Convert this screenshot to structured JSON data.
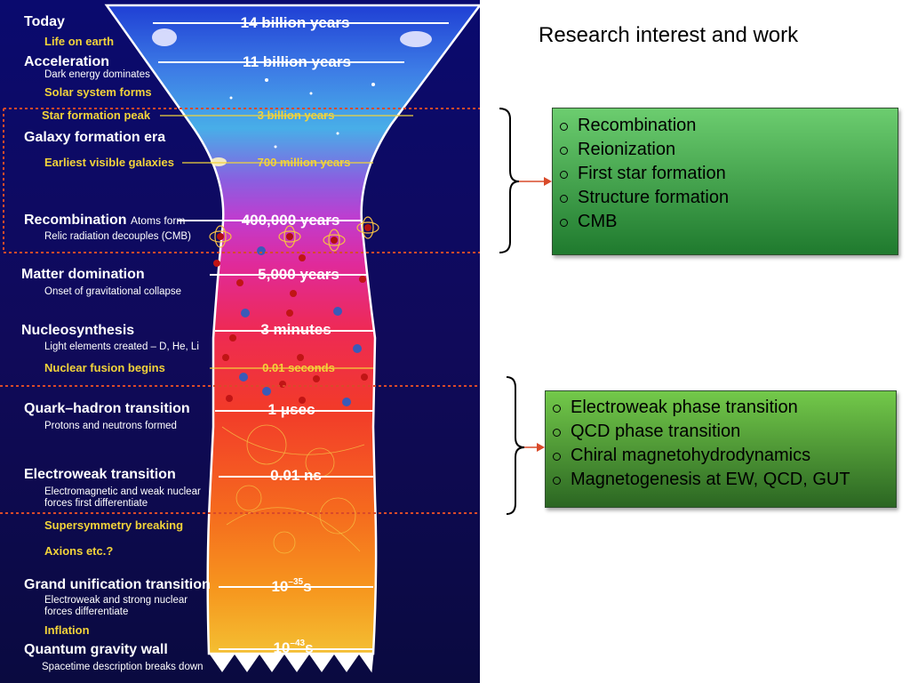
{
  "right_panel": {
    "title": "Research interest and work",
    "group1": [
      "Recombination",
      "Reionization",
      "First star formation",
      "Structure formation",
      "CMB"
    ],
    "group2": [
      "Electroweak phase transition",
      "QCD phase transition",
      "Chiral magnetohydrodynamics",
      "Magnetogenesis at EW, QCD, GUT"
    ]
  },
  "timeline": {
    "events": [
      {
        "title": "Today"
      },
      {
        "yellow": "Life on earth"
      },
      {
        "title": "Acceleration",
        "sub": "Dark energy dominates"
      },
      {
        "yellow": "Solar system forms"
      },
      {
        "yellow": "Star formation peak"
      },
      {
        "title": "Galaxy formation era"
      },
      {
        "yellow": "Earliest visible galaxies"
      },
      {
        "title": "Recombination",
        "inline": "Atoms form",
        "sub": "Relic radiation decouples (CMB)"
      },
      {
        "title": "Matter domination",
        "sub": "Onset of gravitational collapse"
      },
      {
        "title": "Nucleosynthesis",
        "sub": "Light elements created – D, He, Li"
      },
      {
        "yellow": "Nuclear fusion begins"
      },
      {
        "title": "Quark–hadron transition",
        "sub": "Protons and neutrons formed"
      },
      {
        "title": "Electroweak transition",
        "sub": "Electromagnetic and weak nuclear",
        "sub2": "forces first differentiate"
      },
      {
        "yellow": "Supersymmetry breaking"
      },
      {
        "yellow": "Axions etc.?"
      },
      {
        "title": "Grand unification transition",
        "sub": "Electroweak and strong nuclear",
        "sub2": "forces differentiate"
      },
      {
        "yellow": "Inflation"
      },
      {
        "title": "Quantum gravity wall",
        "sub": "Spacetime description breaks down"
      }
    ],
    "times": [
      {
        "text": "14 billion years",
        "style": "white"
      },
      {
        "text": "11 billion years",
        "style": "white"
      },
      {
        "text": "3 billion years",
        "style": "yellow"
      },
      {
        "text": "700 million years",
        "style": "yellow"
      },
      {
        "text": "400,000 years",
        "style": "white"
      },
      {
        "text": "5,000 years",
        "style": "white"
      },
      {
        "text": "3 minutes",
        "style": "white"
      },
      {
        "text": "0.01 seconds",
        "style": "yellow"
      },
      {
        "text": "1 μsec",
        "style": "white"
      },
      {
        "text": "0.01 ns",
        "style": "white"
      },
      {
        "text": "10",
        "sup": "–35",
        "unit": "s",
        "style": "white"
      },
      {
        "text": "10",
        "sup": "–43",
        "unit": "s",
        "style": "white"
      }
    ]
  },
  "colors": {
    "text_yellow": "#f2d33a",
    "bracket_dots": "#d94a2a",
    "arrow": "#d94a2a"
  }
}
